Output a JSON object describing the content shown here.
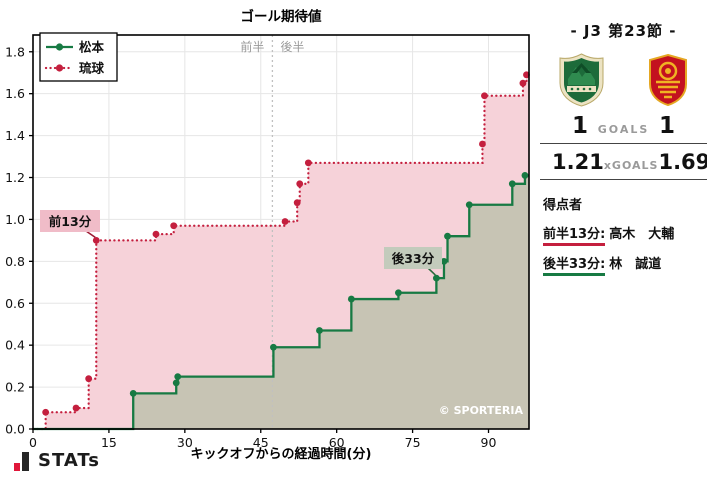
{
  "chart_data": {
    "type": "line",
    "title": "ゴール期待値",
    "xlabel": "キックオフからの経過時間(分)",
    "ylabel": "",
    "watermark": "© SPORTERIA",
    "xlim": [
      0,
      98
    ],
    "ylim": [
      0,
      1.88
    ],
    "xticks": [
      0,
      15,
      30,
      45,
      60,
      75,
      90
    ],
    "yticks": [
      0.0,
      0.2,
      0.4,
      0.6,
      0.8,
      1.0,
      1.2,
      1.4,
      1.6,
      1.8
    ],
    "grid": true,
    "legend_position": "upper-left",
    "halftime_divider_x": 47.3,
    "half_labels": {
      "first": "前半",
      "second": "後半"
    },
    "series": [
      {
        "name": "琉球",
        "color": "#c41f3e",
        "line_style": "dotted",
        "fill_color": "#f6d2d9",
        "final_xg": 1.69,
        "points": [
          [
            0,
            0
          ],
          [
            2.5,
            0.08
          ],
          [
            8.5,
            0.1
          ],
          [
            11,
            0.24
          ],
          [
            12.5,
            0.9
          ],
          [
            24.3,
            0.93
          ],
          [
            27.8,
            0.97
          ],
          [
            49.8,
            0.99
          ],
          [
            52.2,
            1.08
          ],
          [
            52.7,
            1.17
          ],
          [
            54.4,
            1.27
          ],
          [
            88.8,
            1.36
          ],
          [
            89.2,
            1.59
          ],
          [
            96.8,
            1.65
          ],
          [
            97.5,
            1.69
          ]
        ]
      },
      {
        "name": "松本",
        "color": "#177a43",
        "line_style": "solid",
        "fill_color": "#c7c4b4",
        "final_xg": 1.21,
        "points": [
          [
            0,
            0
          ],
          [
            19.8,
            0.17
          ],
          [
            28.3,
            0.22
          ],
          [
            28.6,
            0.25
          ],
          [
            47.5,
            0.39
          ],
          [
            56.6,
            0.47
          ],
          [
            62.9,
            0.62
          ],
          [
            72.2,
            0.65
          ],
          [
            79.7,
            0.72
          ],
          [
            81.2,
            0.8
          ],
          [
            81.9,
            0.92
          ],
          [
            86.2,
            1.07
          ],
          [
            94.7,
            1.17
          ],
          [
            97.2,
            1.21
          ]
        ]
      }
    ],
    "annotations": [
      {
        "text": "前13分",
        "target": [
          12.5,
          0.9
        ],
        "box_color": "#f0bcc8",
        "arrow_color": "#9d1b33"
      },
      {
        "text": "後33分",
        "target": [
          79.7,
          0.72
        ],
        "box_color": "#c3cbbc",
        "arrow_color": "#2a6b3d"
      }
    ]
  },
  "panel": {
    "title": "- J3 第23節 -",
    "home_team": "松本",
    "away_team": "琉球",
    "goals": {
      "home": "1",
      "label": "GOALS",
      "away": "1"
    },
    "xgoals": {
      "home": "1.21",
      "label": "xGOALS",
      "away": "1.69"
    },
    "scorers_heading": "得点者",
    "scorers": [
      {
        "time": "前半13分:",
        "name": "高木　大輔",
        "team_color": "#c41f3e"
      },
      {
        "time": "後半33分:",
        "name": "林　誠道",
        "team_color": "#177a43"
      }
    ]
  },
  "footer": {
    "logo_text": "STATs"
  }
}
